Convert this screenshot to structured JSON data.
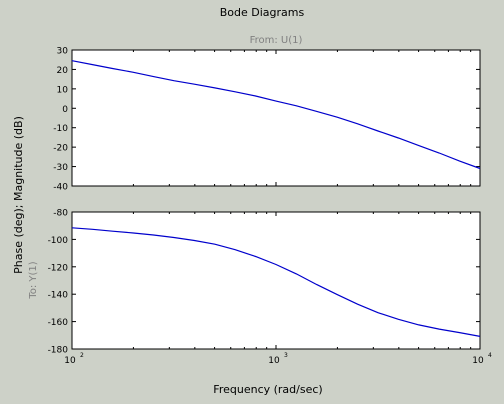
{
  "figure": {
    "title": "Bode Diagrams",
    "from_label": "From: U(1)",
    "to_label": "To: Y(1)",
    "xlabel": "Frequency (rad/sec)",
    "ylabel": "Phase (deg); Magnitude (dB)"
  },
  "colors": {
    "background": "#cdd1c8",
    "axes_face": "#ffffff",
    "line": "#0000cc",
    "text": "#000000",
    "io_label": "#808080"
  },
  "chart_data": [
    {
      "type": "line",
      "name": "magnitude",
      "xscale": "log",
      "xlim": [
        100,
        10000
      ],
      "ylim": [
        -40,
        30
      ],
      "yticks": [
        30,
        20,
        10,
        0,
        -10,
        -20,
        -30,
        -40
      ],
      "xticks": [],
      "grid": false,
      "series": [
        {
          "x": [
            100,
            126,
            158,
            200,
            251,
            316,
            398,
            501,
            631,
            794,
            1000,
            1259,
            1585,
            1995,
            2512,
            3162,
            3981,
            5012,
            6310,
            7943,
            10000
          ],
          "y": [
            24.5,
            22.5,
            20.5,
            18.5,
            16.3,
            14.2,
            12.4,
            10.5,
            8.5,
            6.3,
            3.7,
            1.3,
            -1.6,
            -4.6,
            -8.0,
            -11.7,
            -15.3,
            -19.2,
            -23.0,
            -27.2,
            -31.0
          ]
        }
      ]
    },
    {
      "type": "line",
      "name": "phase",
      "xscale": "log",
      "xlim": [
        100,
        10000
      ],
      "ylim": [
        -180,
        -80
      ],
      "yticks": [
        -80,
        -100,
        -120,
        -140,
        -160,
        -180
      ],
      "xtick_labels": [
        {
          "base": "10",
          "exp": "2"
        },
        {
          "base": "10",
          "exp": "3"
        },
        {
          "base": "10",
          "exp": "4"
        }
      ],
      "xticks": [
        100,
        1000,
        10000
      ],
      "grid": false,
      "series": [
        {
          "x": [
            100,
            126,
            158,
            200,
            251,
            316,
            398,
            501,
            631,
            794,
            1000,
            1259,
            1585,
            1995,
            2512,
            3162,
            3981,
            5012,
            6310,
            7943,
            10000
          ],
          "y": [
            -91.5,
            -92.6,
            -94.0,
            -95.3,
            -96.8,
            -98.6,
            -100.8,
            -103.5,
            -107.5,
            -112.5,
            -118.3,
            -125.2,
            -133.0,
            -140.3,
            -147.3,
            -153.5,
            -158.3,
            -162.4,
            -165.5,
            -168.0,
            -170.8
          ]
        }
      ]
    }
  ]
}
